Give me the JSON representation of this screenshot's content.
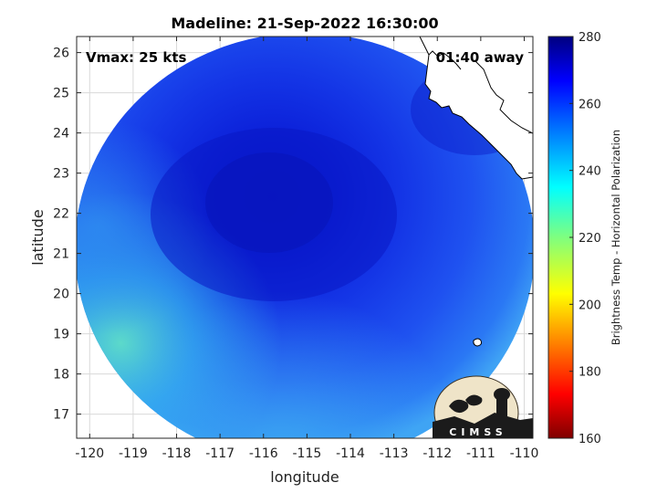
{
  "chart_data": {
    "type": "heatmap",
    "title": "Madeline: 21-Sep-2022 16:30:00",
    "xlabel": "longitude",
    "ylabel": "latitude",
    "xlim": [
      -120.3,
      -109.8
    ],
    "ylim": [
      16.4,
      26.4
    ],
    "xticks": [
      "-120",
      "-119",
      "-118",
      "-117",
      "-116",
      "-115",
      "-114",
      "-113",
      "-112",
      "-111",
      "-110"
    ],
    "yticks": [
      "17",
      "18",
      "19",
      "20",
      "21",
      "22",
      "23",
      "24",
      "25",
      "26"
    ],
    "grid": true,
    "colorbar": {
      "label": "Brightness Temp - Horizontal Polarization",
      "range": [
        160,
        280
      ],
      "ticks": [
        "160",
        "180",
        "200",
        "220",
        "240",
        "260",
        "280"
      ],
      "colormap": "jet"
    },
    "annotations": {
      "vmax": "Vmax: 25 kts",
      "time_offset": "01:40 away"
    },
    "swath": {
      "center_lon": -115.0,
      "center_lat": 21.3,
      "storm_center_lon": -115.6,
      "storm_center_lat": 21.8,
      "min_brightness_temp": 268,
      "edge_brightness_temp": 245,
      "southwest_edge_brightness_temp": 235
    },
    "logo_text": "CIMSS"
  },
  "colors": {
    "background": "#ffffff",
    "axes_background": "#ffffff",
    "grid": "#d9d9d9",
    "coastline": "#ffffff"
  }
}
